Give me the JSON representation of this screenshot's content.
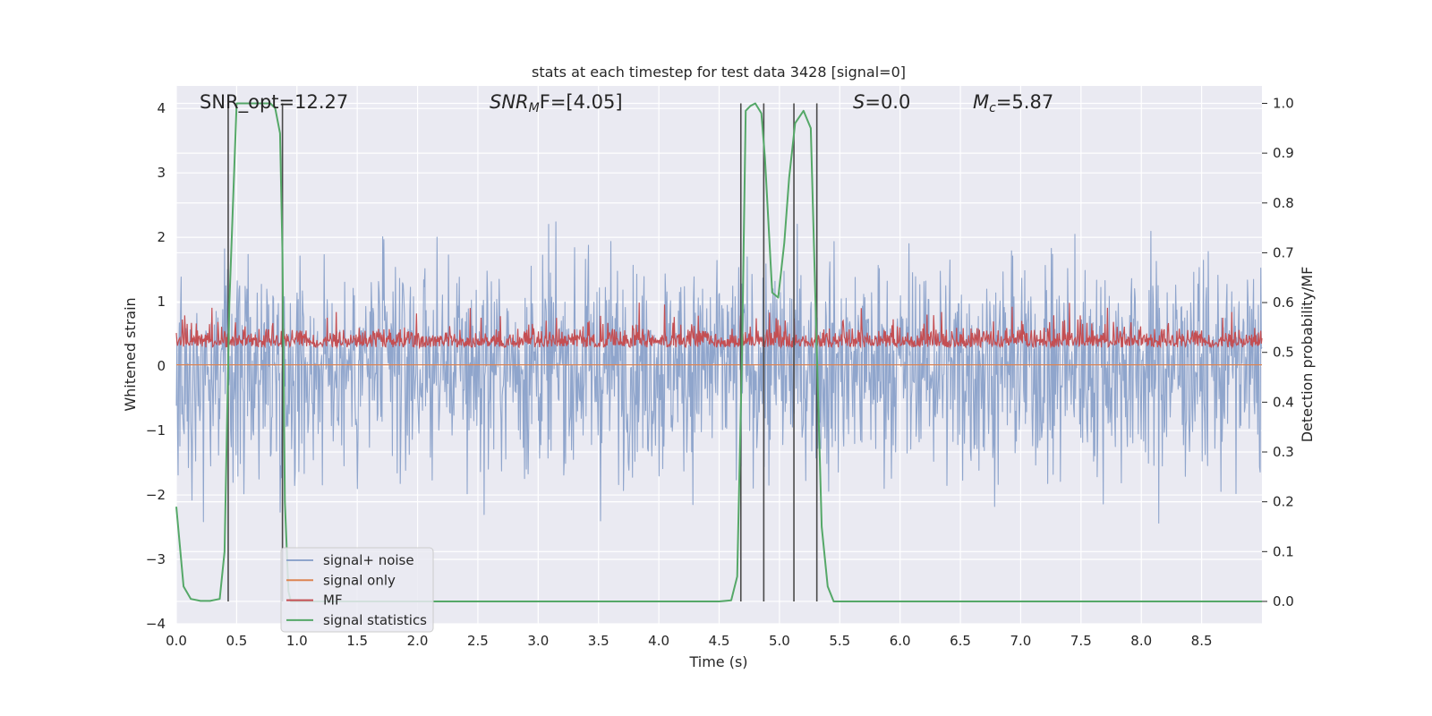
{
  "chart_data": {
    "type": "line",
    "title": "stats at each timestep for test data 3428 [signal=0]",
    "xlabel": "Time (s)",
    "ylabel_left": "Whitened strain",
    "ylabel_right": "Detection probability/MF",
    "xlim": [
      0.0,
      9.0
    ],
    "ylim_left": [
      -4.0,
      4.35
    ],
    "ylim_right": [
      -0.045,
      1.035
    ],
    "x_ticks": [
      "0.0",
      "0.5",
      "1.0",
      "1.5",
      "2.0",
      "2.5",
      "3.0",
      "3.5",
      "4.0",
      "4.5",
      "5.0",
      "5.5",
      "6.0",
      "6.5",
      "7.0",
      "7.5",
      "8.0",
      "8.5"
    ],
    "y_ticks_left": [
      "4",
      "3",
      "2",
      "1",
      "0",
      "−1",
      "−2",
      "−3",
      "−4"
    ],
    "y_ticks_right": [
      "1.0",
      "0.9",
      "0.8",
      "0.7",
      "0.6",
      "0.5",
      "0.4",
      "0.3",
      "0.2",
      "0.1",
      "0.0"
    ],
    "grid": true,
    "annotations": {
      "snr_opt": "SNR_opt=12.27",
      "snr_mf_base": "SNR",
      "snr_mf_sub": "M",
      "snr_mf_rest": "F=[4.05]",
      "s_var": "S",
      "s_rest": "=0.0",
      "mc_base": "M",
      "mc_sub": "c",
      "mc_rest": "=5.87"
    },
    "legend": {
      "position": "lower-left",
      "entries": [
        "signal+ noise",
        "signal only",
        "MF",
        "signal statistics"
      ]
    },
    "colors": {
      "signal_noise": "#8fa5cc",
      "signal_only": "#dd8452",
      "mf": "#c44e52",
      "statistics": "#55a868",
      "vlines": "#4a4a4a",
      "background": "#eaeaf2"
    },
    "series": [
      {
        "name": "signal+ noise",
        "axis": "left",
        "description_range": [
          -4.0,
          4.0
        ]
      },
      {
        "name": "signal only",
        "axis": "left",
        "constant": 0.02
      },
      {
        "name": "MF",
        "axis": "right"
      },
      {
        "name": "signal statistics",
        "axis": "right",
        "x": [
          0.0,
          0.06,
          0.12,
          0.2,
          0.28,
          0.36,
          0.4,
          0.44,
          0.5,
          0.55,
          0.62,
          0.7,
          0.78,
          0.82,
          0.86,
          0.88,
          0.9,
          0.93,
          0.95,
          1.0,
          1.5,
          2.0,
          2.5,
          3.0,
          3.5,
          4.0,
          4.5,
          4.6,
          4.65,
          4.69,
          4.72,
          4.76,
          4.8,
          4.85,
          4.88,
          4.94,
          4.99,
          5.04,
          5.08,
          5.13,
          5.2,
          5.26,
          5.31,
          5.35,
          5.4,
          5.45,
          5.5,
          6.0,
          7.0,
          8.0,
          9.0
        ],
        "values": [
          0.19,
          0.03,
          0.005,
          0.001,
          0.001,
          0.005,
          0.1,
          0.6,
          1.0,
          1.0,
          1.0,
          1.0,
          1.0,
          0.99,
          0.94,
          0.7,
          0.2,
          0.02,
          0.0,
          0.0,
          0.0,
          0.0,
          0.0,
          0.0,
          0.0,
          0.0,
          0.0,
          0.002,
          0.05,
          0.5,
          0.985,
          0.995,
          1.0,
          0.98,
          0.89,
          0.62,
          0.61,
          0.72,
          0.85,
          0.96,
          0.985,
          0.95,
          0.5,
          0.15,
          0.03,
          0.0,
          0.0,
          0.0,
          0.0,
          0.0,
          0.0
        ]
      }
    ],
    "vlines_x": [
      0.43,
      0.88,
      4.68,
      4.87,
      5.12,
      5.31
    ]
  }
}
